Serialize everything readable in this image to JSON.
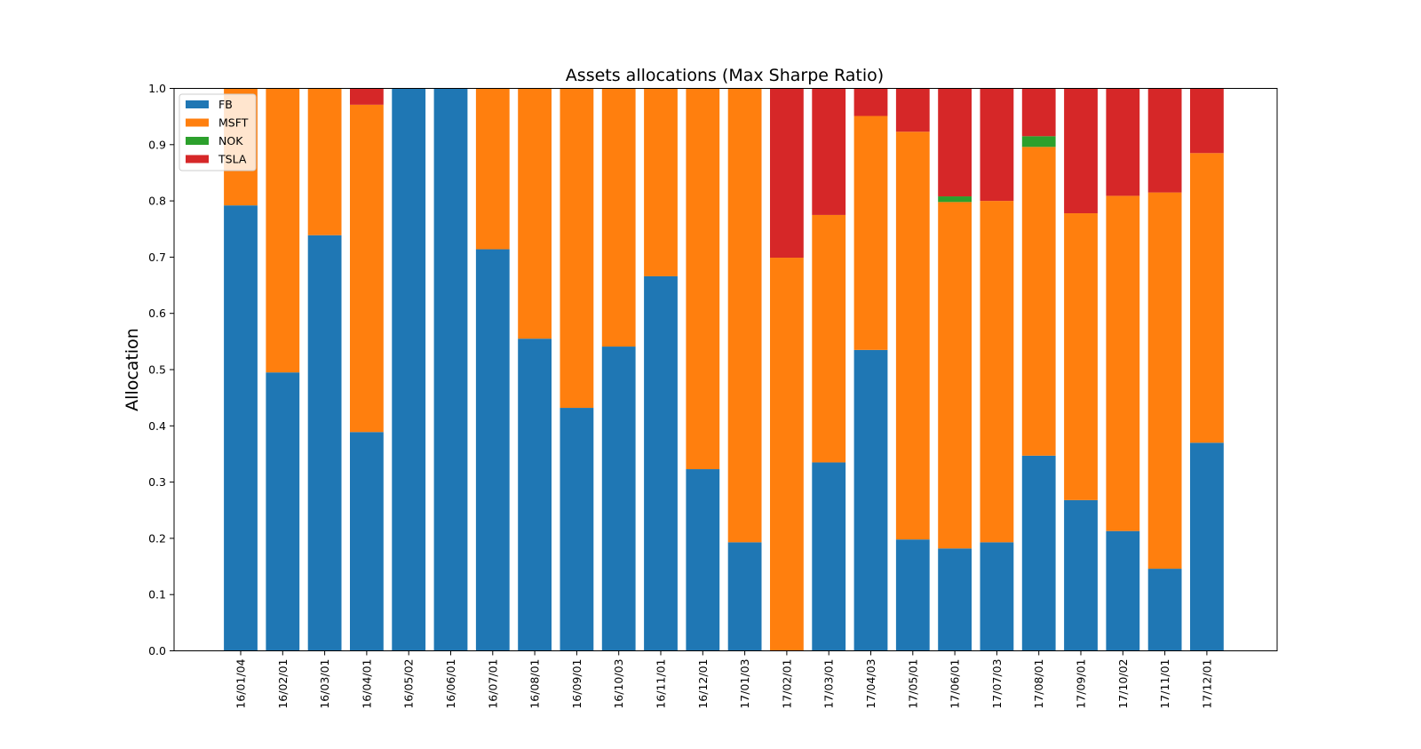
{
  "chart_data": {
    "type": "bar",
    "stacked": true,
    "title": "Assets allocations (Max Sharpe Ratio)",
    "xlabel": "",
    "ylabel": "Allocation",
    "ylim": [
      0,
      1
    ],
    "yticks": [
      "0.0",
      "0.1",
      "0.2",
      "0.3",
      "0.4",
      "0.5",
      "0.6",
      "0.7",
      "0.8",
      "0.9",
      "1.0"
    ],
    "grid": false,
    "legend_position": "top-left",
    "categories": [
      "16/01/04",
      "16/02/01",
      "16/03/01",
      "16/04/01",
      "16/05/02",
      "16/06/01",
      "16/07/01",
      "16/08/01",
      "16/09/01",
      "16/10/03",
      "16/11/01",
      "16/12/01",
      "17/01/03",
      "17/02/01",
      "17/03/01",
      "17/04/03",
      "17/05/01",
      "17/06/01",
      "17/07/03",
      "17/08/01",
      "17/09/01",
      "17/10/02",
      "17/11/01",
      "17/12/01"
    ],
    "series": [
      {
        "name": "FB",
        "color": "#1f77b4",
        "values": [
          0.792,
          0.495,
          0.739,
          0.389,
          1.0,
          1.0,
          0.714,
          0.555,
          0.432,
          0.541,
          0.666,
          0.323,
          0.193,
          0.0,
          0.335,
          0.535,
          0.198,
          0.182,
          0.193,
          0.347,
          0.268,
          0.213,
          0.146,
          0.37
        ]
      },
      {
        "name": "MSFT",
        "color": "#ff7f0e",
        "values": [
          0.208,
          0.505,
          0.261,
          0.582,
          0.0,
          0.0,
          0.286,
          0.445,
          0.568,
          0.459,
          0.334,
          0.677,
          0.807,
          0.699,
          0.44,
          0.416,
          0.725,
          0.616,
          0.607,
          0.549,
          0.51,
          0.596,
          0.669,
          0.515
        ]
      },
      {
        "name": "NOK",
        "color": "#2ca02c",
        "values": [
          0,
          0,
          0,
          0,
          0,
          0,
          0,
          0,
          0,
          0,
          0,
          0,
          0,
          0,
          0,
          0,
          0,
          0.01,
          0,
          0.019,
          0,
          0,
          0,
          0
        ]
      },
      {
        "name": "TSLA",
        "color": "#d62728",
        "values": [
          0,
          0,
          0,
          0.029,
          0,
          0,
          0,
          0,
          0,
          0,
          0,
          0,
          0,
          0.301,
          0.225,
          0.049,
          0.077,
          0.192,
          0.2,
          0.085,
          0.222,
          0.191,
          0.185,
          0.115
        ]
      }
    ]
  }
}
